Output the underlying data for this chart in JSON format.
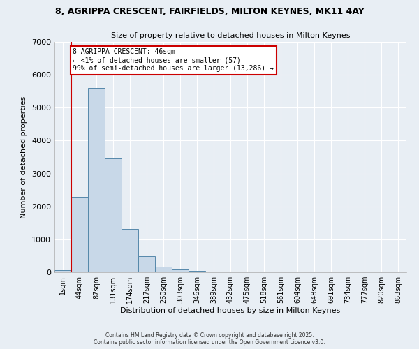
{
  "title_line1": "8, AGRIPPA CRESCENT, FAIRFIELDS, MILTON KEYNES, MK11 4AY",
  "title_line2": "Size of property relative to detached houses in Milton Keynes",
  "xlabel": "Distribution of detached houses by size in Milton Keynes",
  "ylabel": "Number of detached properties",
  "categories": [
    "1sqm",
    "44sqm",
    "87sqm",
    "131sqm",
    "174sqm",
    "217sqm",
    "260sqm",
    "303sqm",
    "346sqm",
    "389sqm",
    "432sqm",
    "475sqm",
    "518sqm",
    "561sqm",
    "604sqm",
    "648sqm",
    "691sqm",
    "734sqm",
    "777sqm",
    "820sqm",
    "863sqm"
  ],
  "values": [
    70,
    2300,
    5600,
    3450,
    1320,
    480,
    170,
    75,
    50,
    0,
    0,
    0,
    0,
    0,
    0,
    0,
    0,
    0,
    0,
    0,
    0
  ],
  "bar_color": "#c8d8e8",
  "bar_edge_color": "#5588aa",
  "vline_color": "#cc0000",
  "annotation_text": "8 AGRIPPA CRESCENT: 46sqm\n← <1% of detached houses are smaller (57)\n99% of semi-detached houses are larger (13,286) →",
  "annotation_box_color": "#cc0000",
  "annotation_fill": "white",
  "ylim": [
    0,
    7000
  ],
  "yticks": [
    0,
    1000,
    2000,
    3000,
    4000,
    5000,
    6000,
    7000
  ],
  "background_color": "#e8eef4",
  "grid_color": "#ffffff",
  "footer_line1": "Contains HM Land Registry data © Crown copyright and database right 2025.",
  "footer_line2": "Contains public sector information licensed under the Open Government Licence v3.0."
}
